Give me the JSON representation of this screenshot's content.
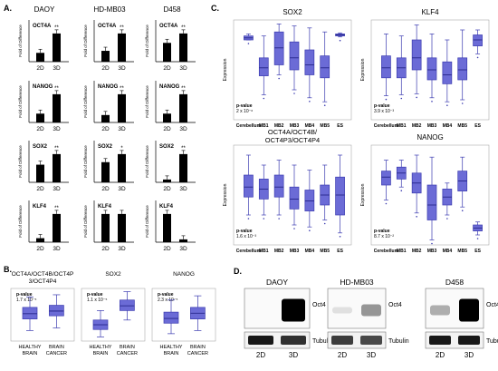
{
  "panels": {
    "A": "A.",
    "B": "B.",
    "C": "C.",
    "D": "D."
  },
  "panel_a": {
    "columns": [
      "DAOY",
      "HD-MB03",
      "D458"
    ],
    "ylabel": "Fold of Difference",
    "x_labels": [
      "2D",
      "3D"
    ],
    "genes": [
      "OCT4A",
      "NANOG",
      "SOX2",
      "KLF4"
    ],
    "subplots": [
      {
        "gene": "OCT4A",
        "line": "DAOY",
        "values": [
          1,
          3.2
        ],
        "stars": "**"
      },
      {
        "gene": "OCT4A",
        "line": "HD-MB03",
        "values": [
          1,
          2.6
        ],
        "stars": "**"
      },
      {
        "gene": "OCT4A",
        "line": "D458",
        "values": [
          1,
          1.5
        ],
        "stars": "**"
      },
      {
        "gene": "NANOG",
        "line": "DAOY",
        "values": [
          1,
          3.2
        ],
        "stars": "**"
      },
      {
        "gene": "NANOG",
        "line": "HD-MB03",
        "values": [
          1,
          3.8
        ],
        "stars": "**"
      },
      {
        "gene": "NANOG",
        "line": "D458",
        "values": [
          1,
          3.2
        ],
        "stars": "**"
      },
      {
        "gene": "SOX2",
        "line": "DAOY",
        "values": [
          1,
          1.6
        ],
        "stars": "**"
      },
      {
        "gene": "SOX2",
        "line": "HD-MB03",
        "values": [
          1,
          1.4
        ],
        "stars": "*"
      },
      {
        "gene": "SOX2",
        "line": "D458",
        "values": [
          1,
          10
        ],
        "stars": "**"
      },
      {
        "gene": "KLF4",
        "line": "DAOY",
        "values": [
          1,
          7
        ],
        "stars": "**"
      },
      {
        "gene": "KLF4",
        "line": "HD-MB03",
        "values": [
          1,
          1
        ],
        "stars": ""
      },
      {
        "gene": "KLF4",
        "line": "D458",
        "values": [
          1,
          0.1
        ],
        "stars": ""
      }
    ]
  },
  "panel_b": {
    "x_labels": [
      "HEALTHY BRAIN",
      "BRAIN CANCER"
    ],
    "ylabel": "Expression",
    "plots": [
      {
        "title": "OCT4A/OCT4B/OCT4P3/OCT4P4",
        "pvalue_label": "p-value",
        "pvalue": "1.7 x 10⁻⁵"
      },
      {
        "title": "SOX2",
        "pvalue_label": "p-value",
        "pvalue": "1.1 x 10⁻⁵"
      },
      {
        "title": "NANOG",
        "pvalue_label": "p-value",
        "pvalue": "2.3 x 10⁻⁵"
      }
    ]
  },
  "panel_c": {
    "categories": [
      "Cerebellum",
      "MB1",
      "MB2",
      "MB3",
      "MB4",
      "MB5",
      "ES"
    ],
    "ylabel": "Expression",
    "plots": [
      {
        "title": "SOX2",
        "pvalue_label": "p-value",
        "pvalue": "2 x 10⁻⁶"
      },
      {
        "title": "KLF4",
        "pvalue_label": "p-value",
        "pvalue": "3.9 x 10⁻³"
      },
      {
        "title": "OCT4A/OCT4B/OCT4P3/OCT4P4",
        "pvalue_label": "p-value",
        "pvalue": "1.6 x 10⁻³"
      },
      {
        "title": "NANOG",
        "pvalue_label": "p-value",
        "pvalue": "8.7 x 10⁻²"
      }
    ]
  },
  "panel_d": {
    "cell_lines": [
      "DAOY",
      "HD-MB03",
      "D458"
    ],
    "bands": [
      "Oct4",
      "Tubulin"
    ],
    "lanes": [
      "2D",
      "3D"
    ]
  },
  "chart_data": [
    {
      "type": "bar",
      "title": "DAOY OCT4A",
      "categories": [
        "2D",
        "3D"
      ],
      "values": [
        1,
        3.2
      ]
    },
    {
      "type": "bar",
      "title": "HD-MB03 OCT4A",
      "categories": [
        "2D",
        "3D"
      ],
      "values": [
        1,
        2.6
      ]
    },
    {
      "type": "bar",
      "title": "D458 OCT4A",
      "categories": [
        "2D",
        "3D"
      ],
      "values": [
        1,
        1.5
      ]
    },
    {
      "type": "bar",
      "title": "DAOY NANOG",
      "categories": [
        "2D",
        "3D"
      ],
      "values": [
        1,
        3.2
      ]
    },
    {
      "type": "bar",
      "title": "HD-MB03 NANOG",
      "categories": [
        "2D",
        "3D"
      ],
      "values": [
        1,
        3.8
      ]
    },
    {
      "type": "bar",
      "title": "D458 NANOG",
      "categories": [
        "2D",
        "3D"
      ],
      "values": [
        1,
        3.2
      ]
    },
    {
      "type": "bar",
      "title": "DAOY SOX2",
      "categories": [
        "2D",
        "3D"
      ],
      "values": [
        1,
        1.6
      ]
    },
    {
      "type": "bar",
      "title": "HD-MB03 SOX2",
      "categories": [
        "2D",
        "3D"
      ],
      "values": [
        1,
        1.4
      ]
    },
    {
      "type": "bar",
      "title": "D458 SOX2",
      "categories": [
        "2D",
        "3D"
      ],
      "values": [
        1,
        10
      ]
    },
    {
      "type": "bar",
      "title": "DAOY KLF4",
      "categories": [
        "2D",
        "3D"
      ],
      "values": [
        1,
        7
      ]
    },
    {
      "type": "bar",
      "title": "HD-MB03 KLF4",
      "categories": [
        "2D",
        "3D"
      ],
      "values": [
        1,
        1
      ]
    },
    {
      "type": "bar",
      "title": "D458 KLF4",
      "categories": [
        "2D",
        "3D"
      ],
      "values": [
        1,
        0.1
      ]
    }
  ]
}
